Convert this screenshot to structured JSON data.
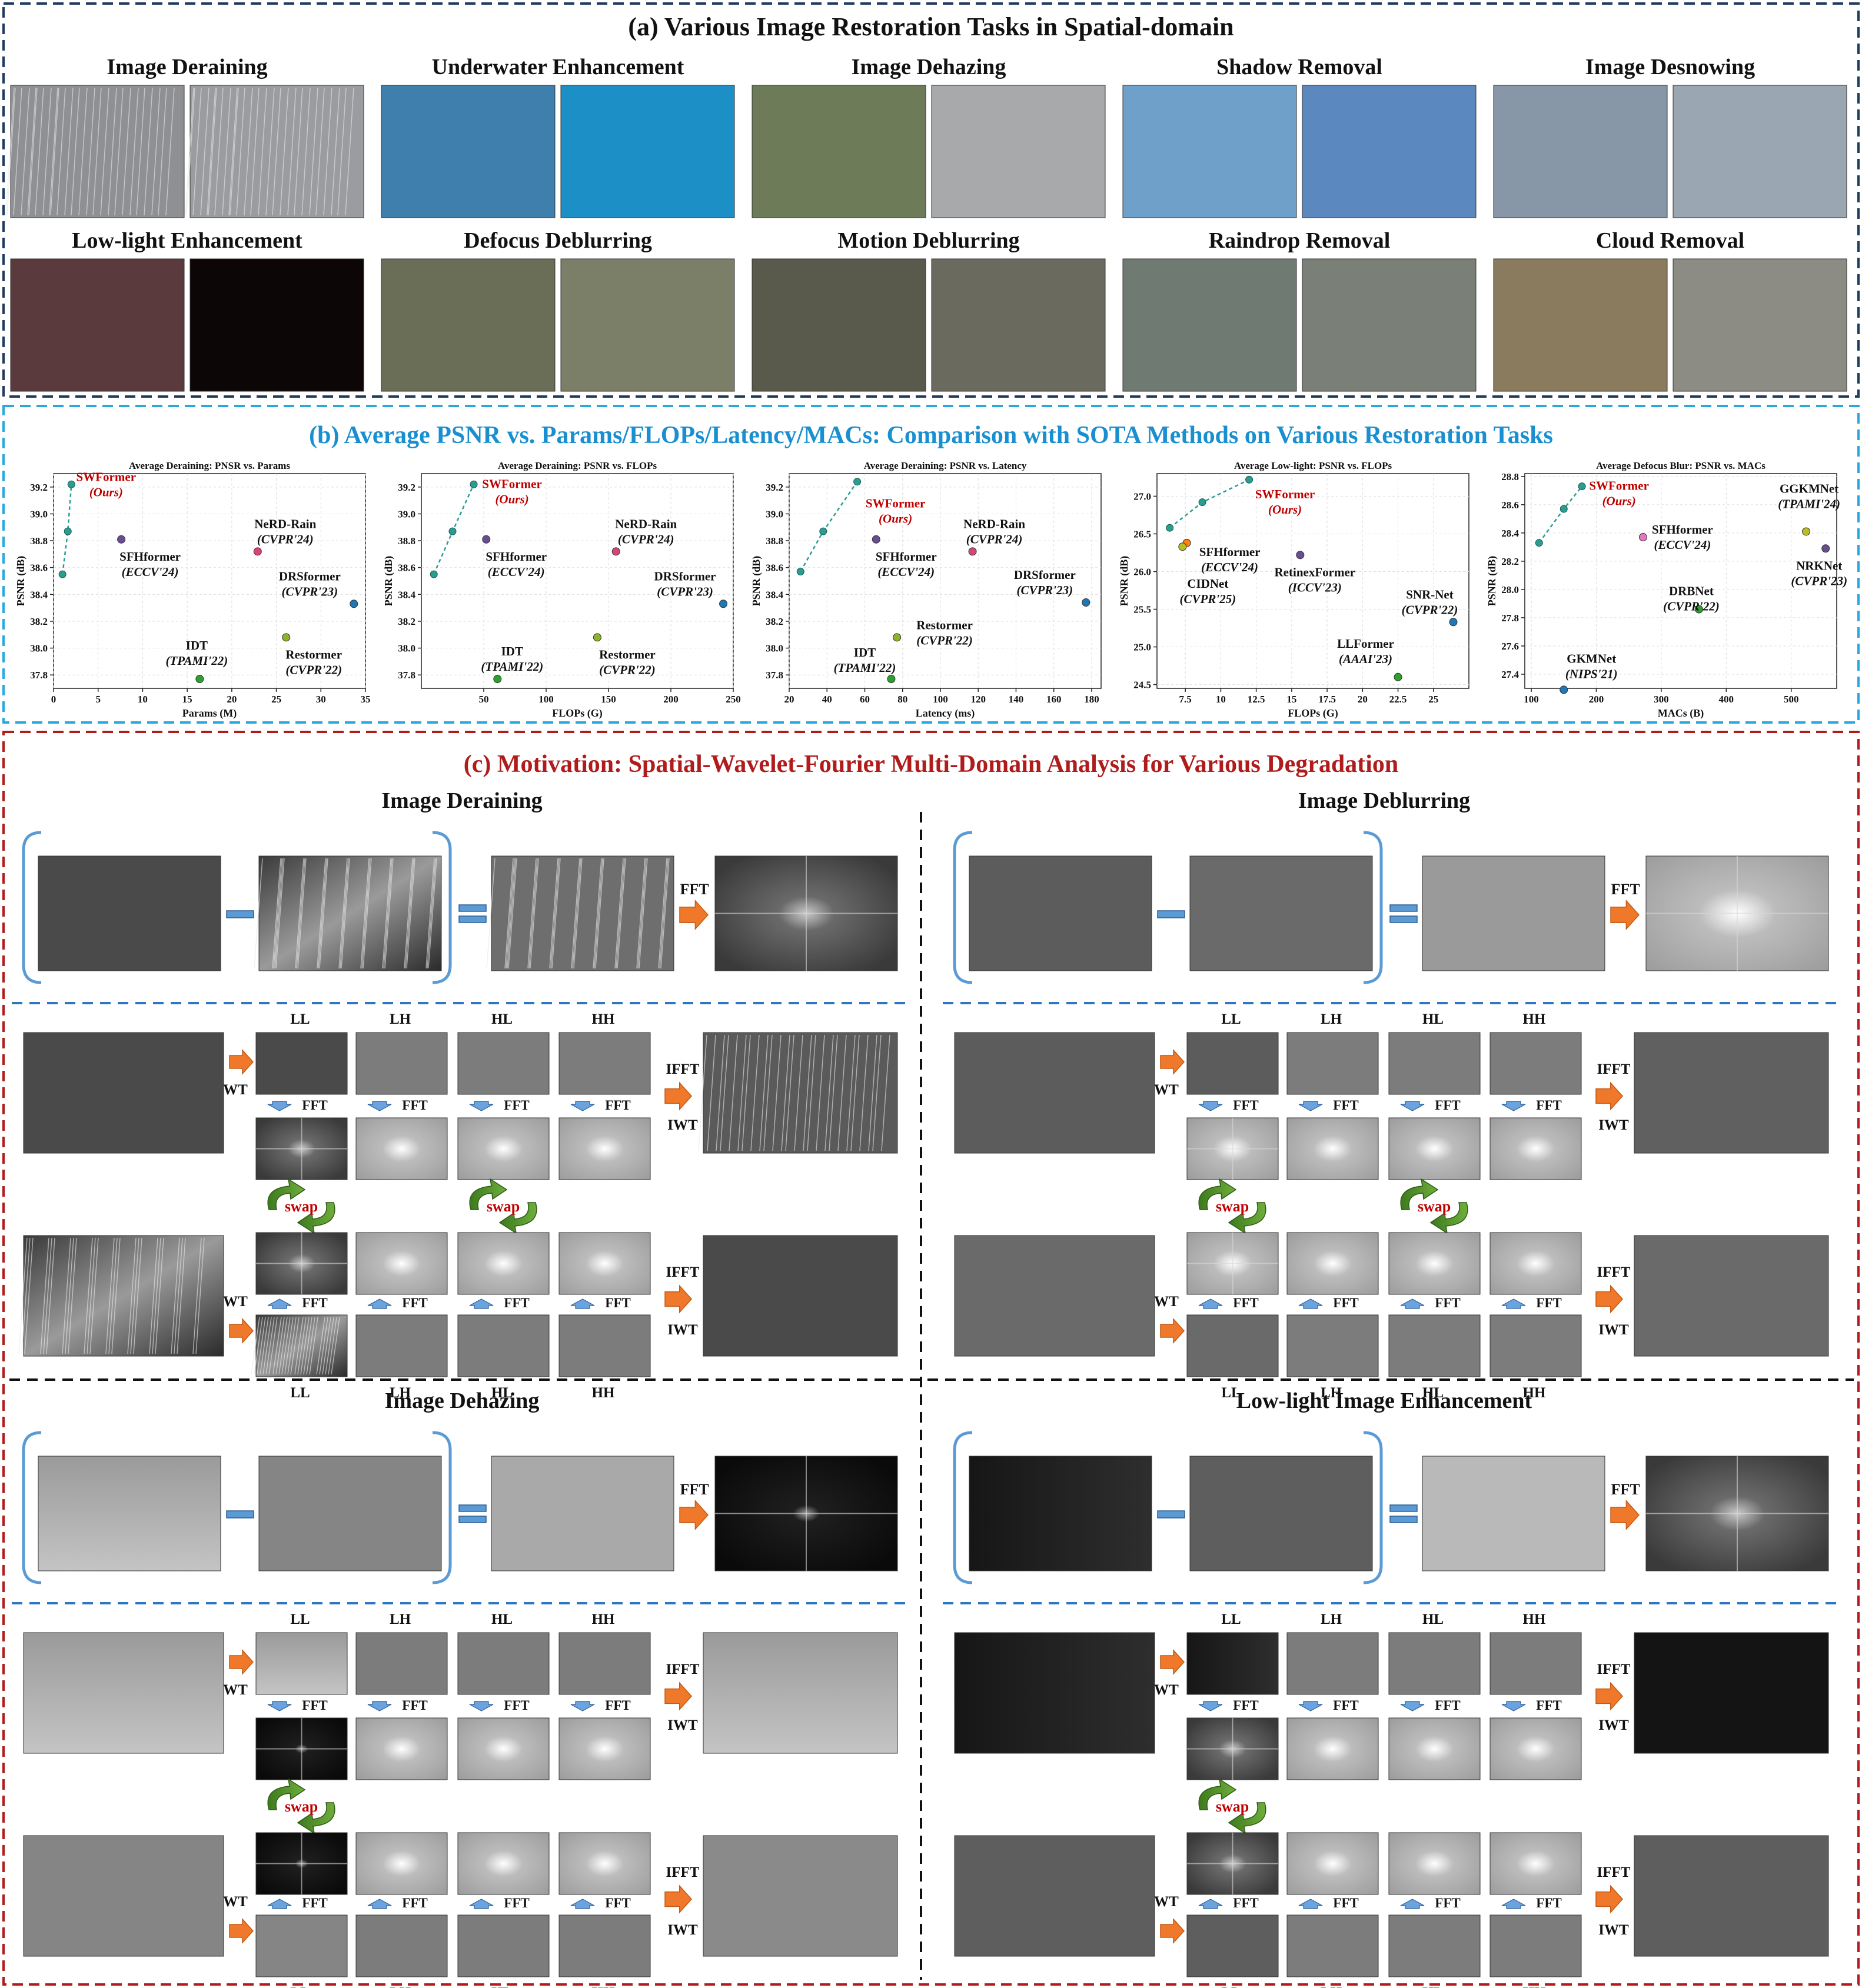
{
  "section_a": {
    "title": "(a) Various Image Restoration Tasks in Spatial-domain",
    "tasks": [
      "Image Deraining",
      "Underwater Enhancement",
      "Image Dehazing",
      "Shadow Removal",
      "Image Desnowing",
      "Low-light Enhancement",
      "Defocus Deblurring",
      "Motion Deblurring",
      "Raindrop Removal",
      "Cloud Removal"
    ],
    "thumb_tones": [
      [
        "#8e9094",
        "#9a9ca0"
      ],
      [
        "#3f7fae",
        "#1d8fc7"
      ],
      [
        "#6d7b58",
        "#a7a9aa"
      ],
      [
        "#6fa0c9",
        "#5c88c0"
      ],
      [
        "#8797a8",
        "#9aa6b2"
      ],
      [
        "#5a3a3c",
        "#0c0606"
      ],
      [
        "#6a6e56",
        "#7c7f68"
      ],
      [
        "#595a4c",
        "#6a6a5e"
      ],
      [
        "#6f7a72",
        "#7a8078"
      ],
      [
        "#8a7a5e",
        "#8c8c84"
      ]
    ]
  },
  "section_b": {
    "title": "(b) Average PSNR vs. Params/FLOPs/Latency/MACs: Comparison with SOTA Methods on Various Restoration Tasks",
    "ylabel": "PSNR (dB)"
  },
  "chart_data": [
    {
      "type": "scatter",
      "title": "Average Deraining: PNSR vs. Params",
      "xlabel": "Params (M)",
      "ylabel": "PSNR (dB)",
      "xlim": [
        0,
        35
      ],
      "ylim": [
        37.7,
        39.3
      ],
      "xticks": [
        0,
        5,
        10,
        15,
        20,
        25,
        30,
        35
      ],
      "yticks": [
        37.8,
        38.0,
        38.2,
        38.4,
        38.6,
        38.8,
        39.0,
        39.2
      ],
      "swformer_curve": [
        {
          "x": 1.0,
          "y": 38.55
        },
        {
          "x": 1.6,
          "y": 38.87
        },
        {
          "x": 2.0,
          "y": 39.22
        }
      ],
      "points": [
        {
          "name": "SWFormer",
          "venue": "(Ours)",
          "x": 2.0,
          "y": 39.22,
          "color": "#2a9d8f",
          "label_dx": 4,
          "label_dy": -6,
          "red": true
        },
        {
          "name": "SFHformer",
          "venue": "(ECCV'24)",
          "x": 7.6,
          "y": 38.81,
          "color": "#6a4c93",
          "label_dx": -6,
          "label_dy": 36
        },
        {
          "name": "NeRD-Rain",
          "venue": "(CVPR'24)",
          "x": 22.9,
          "y": 38.72,
          "color": "#d6457a",
          "label_dx": -8,
          "label_dy": -40
        },
        {
          "name": "DRSformer",
          "venue": "(CVPR'23)",
          "x": 33.7,
          "y": 38.33,
          "color": "#1f77b4",
          "label_dx": -130,
          "label_dy": -40
        },
        {
          "name": "Restormer",
          "venue": "(CVPR'22)",
          "x": 26.1,
          "y": 38.08,
          "color": "#8db32a",
          "label_dx": -8,
          "label_dy": 36
        },
        {
          "name": "IDT",
          "venue": "(TPAMI'22)",
          "x": 16.4,
          "y": 37.77,
          "color": "#2ca02c",
          "label_dx": -60,
          "label_dy": -50
        }
      ]
    },
    {
      "type": "scatter",
      "title": "Average Deraining: PSNR vs. FLOPs",
      "xlabel": "FLOPs (G)",
      "ylabel": "PSNR (dB)",
      "xlim": [
        0,
        250
      ],
      "ylim": [
        37.7,
        39.3
      ],
      "xticks": [
        50,
        100,
        150,
        200,
        250
      ],
      "yticks": [
        37.8,
        38.0,
        38.2,
        38.4,
        38.6,
        38.8,
        39.0,
        39.2
      ],
      "swformer_curve": [
        {
          "x": 10,
          "y": 38.55
        },
        {
          "x": 25,
          "y": 38.87
        },
        {
          "x": 42,
          "y": 39.22
        }
      ],
      "points": [
        {
          "name": "SWFormer",
          "venue": "(Ours)",
          "x": 42,
          "y": 39.22,
          "color": "#2a9d8f",
          "label_dx": 10,
          "label_dy": 6,
          "red": true
        },
        {
          "name": "SFHformer",
          "venue": "(ECCV'24)",
          "x": 52,
          "y": 38.81,
          "color": "#6a4c93",
          "label_dx": -4,
          "label_dy": 36
        },
        {
          "name": "NeRD-Rain",
          "venue": "(CVPR'24)",
          "x": 156,
          "y": 38.72,
          "color": "#d6457a",
          "label_dx": -4,
          "label_dy": -40
        },
        {
          "name": "DRSformer",
          "venue": "(CVPR'23)",
          "x": 242,
          "y": 38.33,
          "color": "#1f77b4",
          "label_dx": -120,
          "label_dy": -40
        },
        {
          "name": "Restormer",
          "venue": "(CVPR'22)",
          "x": 141,
          "y": 38.08,
          "color": "#8db32a",
          "label_dx": -4,
          "label_dy": 36
        },
        {
          "name": "IDT",
          "venue": "(TPAMI'22)",
          "x": 61,
          "y": 37.77,
          "color": "#2ca02c",
          "label_dx": -30,
          "label_dy": -40
        }
      ]
    },
    {
      "type": "scatter",
      "title": "Average Deraining: PSNR vs. Latency",
      "xlabel": "Latency (ms)",
      "ylabel": "PSNR (dB)",
      "xlim": [
        20,
        185
      ],
      "ylim": [
        37.7,
        39.3
      ],
      "xticks": [
        20,
        40,
        60,
        80,
        100,
        120,
        140,
        160,
        180
      ],
      "yticks": [
        37.8,
        38.0,
        38.2,
        38.4,
        38.6,
        38.8,
        39.0,
        39.2
      ],
      "swformer_curve": [
        {
          "x": 26,
          "y": 38.57
        },
        {
          "x": 38,
          "y": 38.87
        },
        {
          "x": 56,
          "y": 39.24
        }
      ],
      "points": [
        {
          "name": "SWFormer",
          "venue": "(Ours)",
          "x": 56,
          "y": 39.24,
          "color": "#2a9d8f",
          "label_dx": 10,
          "label_dy": 44,
          "red": true
        },
        {
          "name": "SFHformer",
          "venue": "(ECCV'24)",
          "x": 66,
          "y": 38.81,
          "color": "#6a4c93",
          "label_dx": -4,
          "label_dy": 36
        },
        {
          "name": "NeRD-Rain",
          "venue": "(CVPR'24)",
          "x": 117,
          "y": 38.72,
          "color": "#d6457a",
          "label_dx": -18,
          "label_dy": -40
        },
        {
          "name": "DRSformer",
          "venue": "(CVPR'23)",
          "x": 177,
          "y": 38.34,
          "color": "#1f77b4",
          "label_dx": -125,
          "label_dy": -40
        },
        {
          "name": "Restormer",
          "venue": "(CVPR'22)",
          "x": 77,
          "y": 38.08,
          "color": "#8db32a",
          "label_dx": 26,
          "label_dy": -14
        },
        {
          "name": "IDT",
          "venue": "(TPAMI'22)",
          "x": 74,
          "y": 37.77,
          "color": "#2ca02c",
          "label_dx": -100,
          "label_dy": -38
        }
      ]
    },
    {
      "type": "scatter",
      "title": "Average Low-light: PSNR vs. FLOPs",
      "xlabel": "FLOPs (G)",
      "ylabel": "PSNR (dB)",
      "xlim": [
        5.5,
        27.5
      ],
      "ylim": [
        24.45,
        27.3
      ],
      "xticks": [
        7.5,
        10.0,
        12.5,
        15.0,
        17.5,
        20.0,
        22.5,
        25.0
      ],
      "yticks": [
        24.5,
        25.0,
        25.5,
        26.0,
        26.5,
        27.0
      ],
      "swformer_curve": [
        {
          "x": 6.4,
          "y": 26.58
        },
        {
          "x": 8.7,
          "y": 26.92
        },
        {
          "x": 12.0,
          "y": 27.22
        }
      ],
      "points": [
        {
          "name": "SWFormer",
          "venue": "(Ours)",
          "x": 12.0,
          "y": 27.22,
          "color": "#2a9d8f",
          "label_dx": 6,
          "label_dy": 32,
          "red": true
        },
        {
          "name": "SFHformer",
          "venue": "(ECCV'24)",
          "x": 7.6,
          "y": 26.38,
          "color": "#ff7f0e",
          "label_dx": 18,
          "label_dy": 22
        },
        {
          "name": "CIDNet",
          "venue": "(CVPR'25)",
          "x": 7.3,
          "y": 26.33,
          "color": "#bcbd22",
          "label_dx": -12,
          "label_dy": 70
        },
        {
          "name": "RetinexFormer",
          "venue": "(ICCV'23)",
          "x": 15.6,
          "y": 26.22,
          "color": "#6a4c93",
          "label_dx": -30,
          "label_dy": 36
        },
        {
          "name": "SNR-Net",
          "venue": "(CVPR'22)",
          "x": 26.4,
          "y": 25.33,
          "color": "#1f77b4",
          "label_dx": -95,
          "label_dy": -40
        },
        {
          "name": "LLFormer",
          "venue": "(AAAI'23)",
          "x": 22.5,
          "y": 24.6,
          "color": "#2ca02c",
          "label_dx": -110,
          "label_dy": -50
        }
      ]
    },
    {
      "type": "scatter",
      "title": "Average Defocus Blur: PSNR vs. MACs",
      "xlabel": "MACs (B)",
      "ylabel": "PSNR (dB)",
      "xlim": [
        90,
        570
      ],
      "ylim": [
        27.3,
        28.82
      ],
      "xticks": [
        100,
        200,
        300,
        400,
        500
      ],
      "yticks": [
        27.4,
        27.6,
        27.8,
        28.0,
        28.2,
        28.4,
        28.6,
        28.8
      ],
      "swformer_curve": [
        {
          "x": 112,
          "y": 28.33
        },
        {
          "x": 150,
          "y": 28.57
        },
        {
          "x": 178,
          "y": 28.73
        }
      ],
      "points": [
        {
          "name": "SWFormer",
          "venue": "(Ours)",
          "x": 178,
          "y": 28.73,
          "color": "#2a9d8f",
          "label_dx": 8,
          "label_dy": 6,
          "red": true
        },
        {
          "name": "SFHformer",
          "venue": "(ECCV'24)",
          "x": 272,
          "y": 28.37,
          "color": "#e377c2",
          "label_dx": 12,
          "label_dy": -6
        },
        {
          "name": "DRBNet",
          "venue": "(CVPR'22)",
          "x": 358,
          "y": 27.86,
          "color": "#2ca02c",
          "label_dx": -68,
          "label_dy": -24
        },
        {
          "name": "GKMNet",
          "venue": "(NIPS'21)",
          "x": 150,
          "y": 27.29,
          "color": "#1f77b4",
          "label_dx": -8,
          "label_dy": -46
        },
        {
          "name": "GGKMNet",
          "venue": "(TPAMI'24)",
          "x": 523,
          "y": 28.41,
          "color": "#bcbd22",
          "label_dx": -50,
          "label_dy": -66
        },
        {
          "name": "NRKNet",
          "venue": "(CVPR'23)",
          "x": 553,
          "y": 28.29,
          "color": "#6a4c93",
          "label_dx": -66,
          "label_dy": 36
        }
      ]
    }
  ],
  "section_c": {
    "title": "(c) Motivation: Spatial-Wavelet-Fourier Multi-Domain Analysis for Various Degradation",
    "panels": [
      "Image Deraining",
      "Image Deblurring",
      "Image Dehazing",
      "Low-light Image Enhancement"
    ],
    "bands": [
      "LL",
      "LH",
      "HL",
      "HH"
    ],
    "fft": "FFT",
    "ifft": "IFFT",
    "wt": "WT",
    "iwt": "IWT",
    "swap": "swap"
  }
}
